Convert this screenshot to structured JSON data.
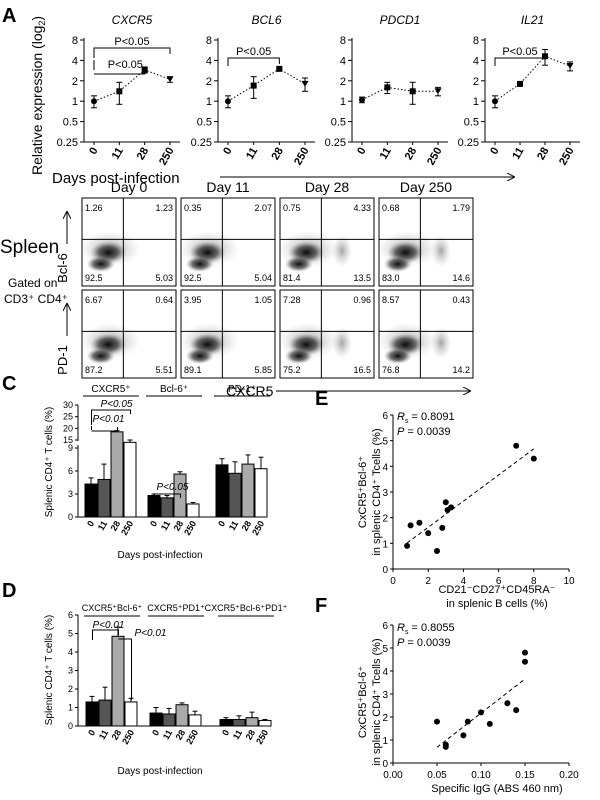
{
  "panel_labels": {
    "A": "A",
    "B": "B",
    "C": "C",
    "D": "D",
    "E": "E",
    "F": "F"
  },
  "panel_a": {
    "ylabel": "Relative expression (log",
    "ylabel_sub": "2",
    "ylabel_close": ")",
    "xlabel": "Days post-infection",
    "y_ticks": [
      "0.25",
      "0.5",
      "1",
      "2",
      "4",
      "8"
    ],
    "x_ticks": [
      "0",
      "11",
      "28",
      "250"
    ]
  },
  "panel_b": {
    "days": [
      "Day 0",
      "Day 11",
      "Day 28",
      "Day 250"
    ],
    "spleen": "Spleen",
    "gated_line1": "Gated on",
    "gated_line2": "CD3⁺ CD4⁺",
    "row_labels": [
      "Bcl-6",
      "PD-1"
    ],
    "xlabel": "CXCR5",
    "quadrants": [
      [
        [
          "1.26",
          "1.23",
          "92.5",
          "5.03"
        ],
        [
          "0.35",
          "2.07",
          "92.5",
          "5.04"
        ],
        [
          "0.75",
          "4.33",
          "81.4",
          "13.5"
        ],
        [
          "0.68",
          "1.79",
          "83.0",
          "14.6"
        ]
      ],
      [
        [
          "6.67",
          "0.64",
          "87.2",
          "5.51"
        ],
        [
          "3.95",
          "1.05",
          "89.1",
          "5.85"
        ],
        [
          "7.28",
          "0.96",
          "75.2",
          "16.5"
        ],
        [
          "8.57",
          "0.43",
          "76.8",
          "14.2"
        ]
      ]
    ]
  },
  "panel_c": {
    "ylabel": "Splenic CD4⁺ T cells (%)",
    "xlabel": "Days post-infection",
    "pvals": [
      "P<0.05",
      "P<0.01",
      "P<0.05"
    ]
  },
  "panel_d": {
    "ylabel": "Splenic CD4⁺ T cells (%)",
    "xlabel": "Days post-infection",
    "pvals": [
      "P<0.01",
      "P<0.01"
    ]
  },
  "panel_e": {
    "ylabel_line1": "CxCR5⁺Bcl-6⁺",
    "ylabel_line2": "in splenic CD4⁺ Tcells (%)",
    "xlabel_line1": "CD21⁻CD27⁺CD45RA⁻",
    "xlabel_line2": "in splenic  B cells (%)",
    "rs": "R",
    "rs_sub": "s",
    "rs_val": " = 0.8091",
    "p": "P = 0.0039"
  },
  "panel_f": {
    "ylabel_line1": "CxCR5⁺Bcl-6⁺",
    "ylabel_line2": "in splenic CD4⁺ Tcells (%)",
    "xlabel": "Specific IgG (ABS 460 nm)",
    "rs": "R",
    "rs_sub": "s",
    "rs_val": " = 0.8055",
    "p": "P = 0.0039"
  },
  "chart_data": [
    {
      "type": "line",
      "panel": "A",
      "title": "CXCR5",
      "x": [
        "0",
        "11",
        "28",
        "250"
      ],
      "values": [
        1.0,
        1.4,
        2.9,
        2.1
      ],
      "err": [
        0.2,
        0.5,
        0.3,
        0.2
      ],
      "markers": "circle,square,square,triangle-down",
      "ylim": [
        0.25,
        8
      ],
      "yscale": "log2",
      "annotations": [
        "P<0.05",
        "P<0.05"
      ]
    },
    {
      "type": "line",
      "panel": "A",
      "title": "BCL6",
      "x": [
        "0",
        "11",
        "28",
        "250"
      ],
      "values": [
        1.0,
        1.7,
        3.0,
        1.8
      ],
      "err": [
        0.2,
        0.6,
        0.1,
        0.4
      ],
      "ylim": [
        0.25,
        8
      ],
      "yscale": "log2",
      "annotations": [
        "P<0.05"
      ]
    },
    {
      "type": "line",
      "panel": "A",
      "title": "PDCD1",
      "x": [
        "0",
        "11",
        "28",
        "250"
      ],
      "values": [
        1.05,
        1.6,
        1.4,
        1.4
      ],
      "err": [
        0.1,
        0.3,
        0.5,
        0.2
      ],
      "ylim": [
        0.25,
        8
      ],
      "yscale": "log2"
    },
    {
      "type": "line",
      "panel": "A",
      "title": "IL21",
      "x": [
        "0",
        "11",
        "28",
        "250"
      ],
      "values": [
        1.0,
        1.8,
        4.6,
        3.3
      ],
      "err": [
        0.2,
        0.1,
        1.2,
        0.5
      ],
      "ylim": [
        0.25,
        8
      ],
      "yscale": "log2",
      "annotations": [
        "P<0.05"
      ]
    },
    {
      "type": "bar",
      "panel": "C",
      "groups": [
        "CXCR5⁺",
        "Bcl-6⁺",
        "PD-1⁺"
      ],
      "categories": [
        "0",
        "11",
        "28",
        "250"
      ],
      "values": [
        [
          4.3,
          4.9,
          18.5,
          14.0
        ],
        [
          2.8,
          2.5,
          5.6,
          1.7
        ],
        [
          6.8,
          5.7,
          6.9,
          6.3
        ]
      ],
      "err": [
        [
          0.8,
          2.0,
          0.5,
          1.0
        ],
        [
          0.2,
          0.3,
          0.3,
          0.2
        ],
        [
          0.8,
          1.5,
          1.2,
          1.5
        ]
      ],
      "y_ticks_bottom": [
        "0",
        "3",
        "6",
        "9"
      ],
      "y_ticks_top": [
        "15",
        "20",
        "25",
        "30"
      ]
    },
    {
      "type": "bar",
      "panel": "D",
      "groups": [
        "CXCR5⁺Bcl-6⁺",
        "CXCR5⁺PD1⁺",
        "CXCR5⁺Bcl-6⁺PD1⁺"
      ],
      "categories": [
        "0",
        "11",
        "28",
        "250"
      ],
      "values": [
        [
          1.3,
          1.4,
          4.85,
          1.3
        ],
        [
          0.7,
          0.65,
          1.15,
          0.6
        ],
        [
          0.35,
          0.35,
          0.45,
          0.3
        ]
      ],
      "err": [
        [
          0.3,
          0.7,
          0.5,
          0.2
        ],
        [
          0.3,
          0.3,
          0.1,
          0.2
        ],
        [
          0.1,
          0.2,
          0.3,
          0.05
        ]
      ],
      "ylim": [
        0,
        6
      ],
      "y_ticks": [
        "0",
        "1",
        "2",
        "3",
        "4",
        "5",
        "6"
      ]
    },
    {
      "type": "scatter",
      "panel": "E",
      "x": [
        0.8,
        1.0,
        1.5,
        2.0,
        2.5,
        2.8,
        3.0,
        3.1,
        3.3,
        7.0,
        8.0
      ],
      "y": [
        0.9,
        1.7,
        1.8,
        1.4,
        0.7,
        1.6,
        2.6,
        2.3,
        2.4,
        4.8,
        4.3
      ],
      "xlim": [
        0,
        10
      ],
      "ylim": [
        0,
        6
      ],
      "x_ticks": [
        "0",
        "2",
        "4",
        "6",
        "8",
        "10"
      ],
      "y_ticks": [
        "0",
        "1",
        "2",
        "3",
        "4",
        "5",
        "6"
      ],
      "trend": "dashed"
    },
    {
      "type": "scatter",
      "panel": "F",
      "x": [
        0.05,
        0.06,
        0.06,
        0.08,
        0.085,
        0.1,
        0.11,
        0.13,
        0.14,
        0.15,
        0.15
      ],
      "y": [
        1.8,
        0.8,
        0.7,
        1.2,
        1.8,
        2.2,
        1.7,
        2.6,
        2.3,
        4.8,
        4.4
      ],
      "xlim": [
        0,
        0.2
      ],
      "ylim": [
        0,
        6
      ],
      "x_ticks": [
        "0.00",
        "0.05",
        "0.10",
        "0.15",
        "0.20"
      ],
      "y_ticks": [
        "0",
        "1",
        "2",
        "3",
        "4",
        "5",
        "6"
      ],
      "trend": "dashed"
    }
  ]
}
